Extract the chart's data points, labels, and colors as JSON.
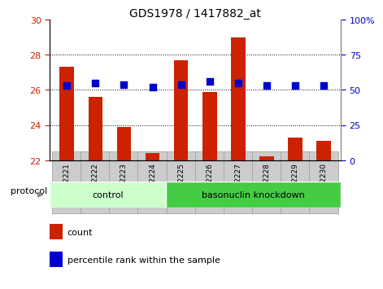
{
  "title": "GDS1978 / 1417882_at",
  "samples": [
    "GSM92221",
    "GSM92222",
    "GSM92223",
    "GSM92224",
    "GSM92225",
    "GSM92226",
    "GSM92227",
    "GSM92228",
    "GSM92229",
    "GSM92230"
  ],
  "counts": [
    27.3,
    25.6,
    23.9,
    22.4,
    27.7,
    25.9,
    29.0,
    22.2,
    23.3,
    23.1
  ],
  "percentile_ranks": [
    53,
    55,
    54,
    52,
    54,
    56,
    55,
    53,
    53,
    53
  ],
  "ylim_left": [
    22,
    30
  ],
  "ylim_right": [
    0,
    100
  ],
  "yticks_left": [
    22,
    24,
    26,
    28,
    30
  ],
  "yticks_right": [
    0,
    25,
    50,
    75,
    100
  ],
  "bar_color": "#cc2200",
  "dot_color": "#0000cc",
  "bar_width": 0.5,
  "dot_size": 40,
  "groups": [
    {
      "label": "control",
      "start": 0,
      "end": 4,
      "color": "#ccffcc"
    },
    {
      "label": "basonuclin knockdown",
      "start": 4,
      "end": 10,
      "color": "#44cc44"
    }
  ],
  "protocol_label": "protocol",
  "legend_items": [
    {
      "label": "count",
      "color": "#cc2200"
    },
    {
      "label": "percentile rank within the sample",
      "color": "#0000cc"
    }
  ],
  "grid_color": "#000000",
  "tick_label_color_left": "#cc2200",
  "tick_label_color_right": "#0000cc",
  "bg_color": "#ffffff",
  "plot_bg": "#ffffff",
  "xtick_bg": "#cccccc",
  "xtick_edge": "#999999"
}
